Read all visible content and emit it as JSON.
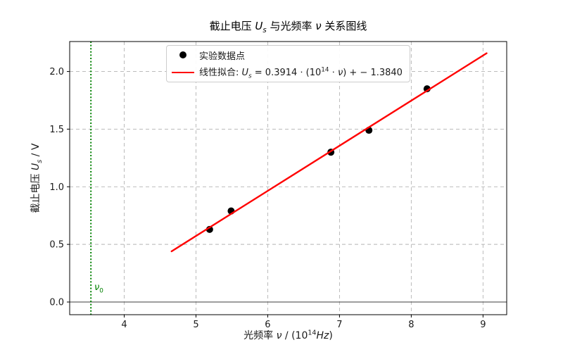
{
  "title": {
    "part1": "截止电压 ",
    "U": "U",
    "U_sub": "s",
    "part2": " 与光频率 ",
    "nu": "ν",
    "part3": " 关系图线"
  },
  "axes": {
    "ylabel": {
      "part1": "截止电压 ",
      "U": "U",
      "U_sub": "s",
      "part2": " / V"
    },
    "xlabel": {
      "part1": "光频率 ",
      "nu": "ν",
      "part2": " / (10",
      "sup": "14",
      "unit": "Hz",
      "part3": ")"
    }
  },
  "legend": {
    "data_label": "实验数据点",
    "fit": {
      "prefix": "线性拟合: ",
      "U": "U",
      "U_sub": "s",
      "eq1": " = 0.3914 ⋅ (10",
      "sup": "14",
      "eq2": " ⋅ ",
      "nu": "ν",
      "eq3": ") + − 1.3840"
    }
  },
  "annotations": {
    "nu0": {
      "base": "ν",
      "sub": "0"
    }
  },
  "colors": {
    "fit_line": "#ff0000",
    "points": "#000000",
    "threshold_line": "#008000",
    "grid": "#b3b3b3",
    "zero_line": "#3c3c3c",
    "frame": "#000000",
    "tick_text": "#1a1a1a"
  },
  "chart_data": {
    "type": "scatter",
    "title": "截止电压 U_s 与光频率 ν 关系图线",
    "xlabel": "光频率 ν / (10^14 Hz)",
    "ylabel": "截止电压 U_s / V",
    "series": [
      {
        "name": "实验数据点",
        "type": "scatter",
        "x": [
          5.19,
          5.49,
          6.88,
          7.41,
          8.22
        ],
        "y": [
          0.63,
          0.79,
          1.3,
          1.49,
          1.85
        ]
      },
      {
        "name": "线性拟合: U_s = 0.3914·(10^14·ν) + −1.3840",
        "type": "line",
        "slope": 0.3914,
        "intercept": -1.384,
        "x_range": [
          4.66,
          9.05
        ]
      }
    ],
    "threshold_frequency_nu0": 3.536,
    "xlim": [
      3.24,
      9.33
    ],
    "ylim": [
      -0.11,
      2.26
    ],
    "x_ticks": [
      4,
      5,
      6,
      7,
      8,
      9
    ],
    "x_tick_labels": [
      "4",
      "5",
      "6",
      "7",
      "8",
      "9"
    ],
    "y_ticks": [
      0,
      0.5,
      1,
      1.5,
      2
    ],
    "y_tick_labels": [
      "0.0",
      "0.5",
      "1.0",
      "1.5",
      "2.0"
    ],
    "grid": true,
    "grid_style": "dashed",
    "legend_position": "upper left",
    "zero_voltage_line": 0
  }
}
